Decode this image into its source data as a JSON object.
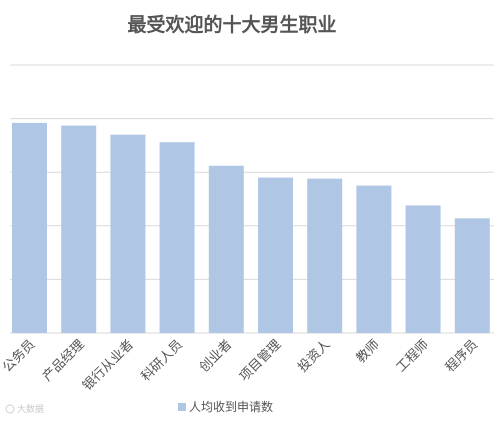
{
  "chart_data": {
    "type": "bar",
    "title": "最受欢迎的十大男生职业",
    "categories": [
      "公务员",
      "产品经理",
      "银行从业者",
      "科研人员",
      "创业者",
      "项目管理",
      "投资人",
      "教师",
      "工程师",
      "程序员"
    ],
    "series": [
      {
        "name": "人均收到申请数",
        "values": [
          3.92,
          3.87,
          3.7,
          3.56,
          3.12,
          2.9,
          2.88,
          2.75,
          2.38,
          2.14
        ]
      }
    ],
    "xlabel": "",
    "ylabel": "",
    "ylim": [
      0,
      5
    ],
    "grid": true,
    "legend": "bottom",
    "colors": {
      "bar": "#afc7e5",
      "grid": "#d9d9d9",
      "text": "#555555"
    }
  },
  "watermark": "大数据"
}
